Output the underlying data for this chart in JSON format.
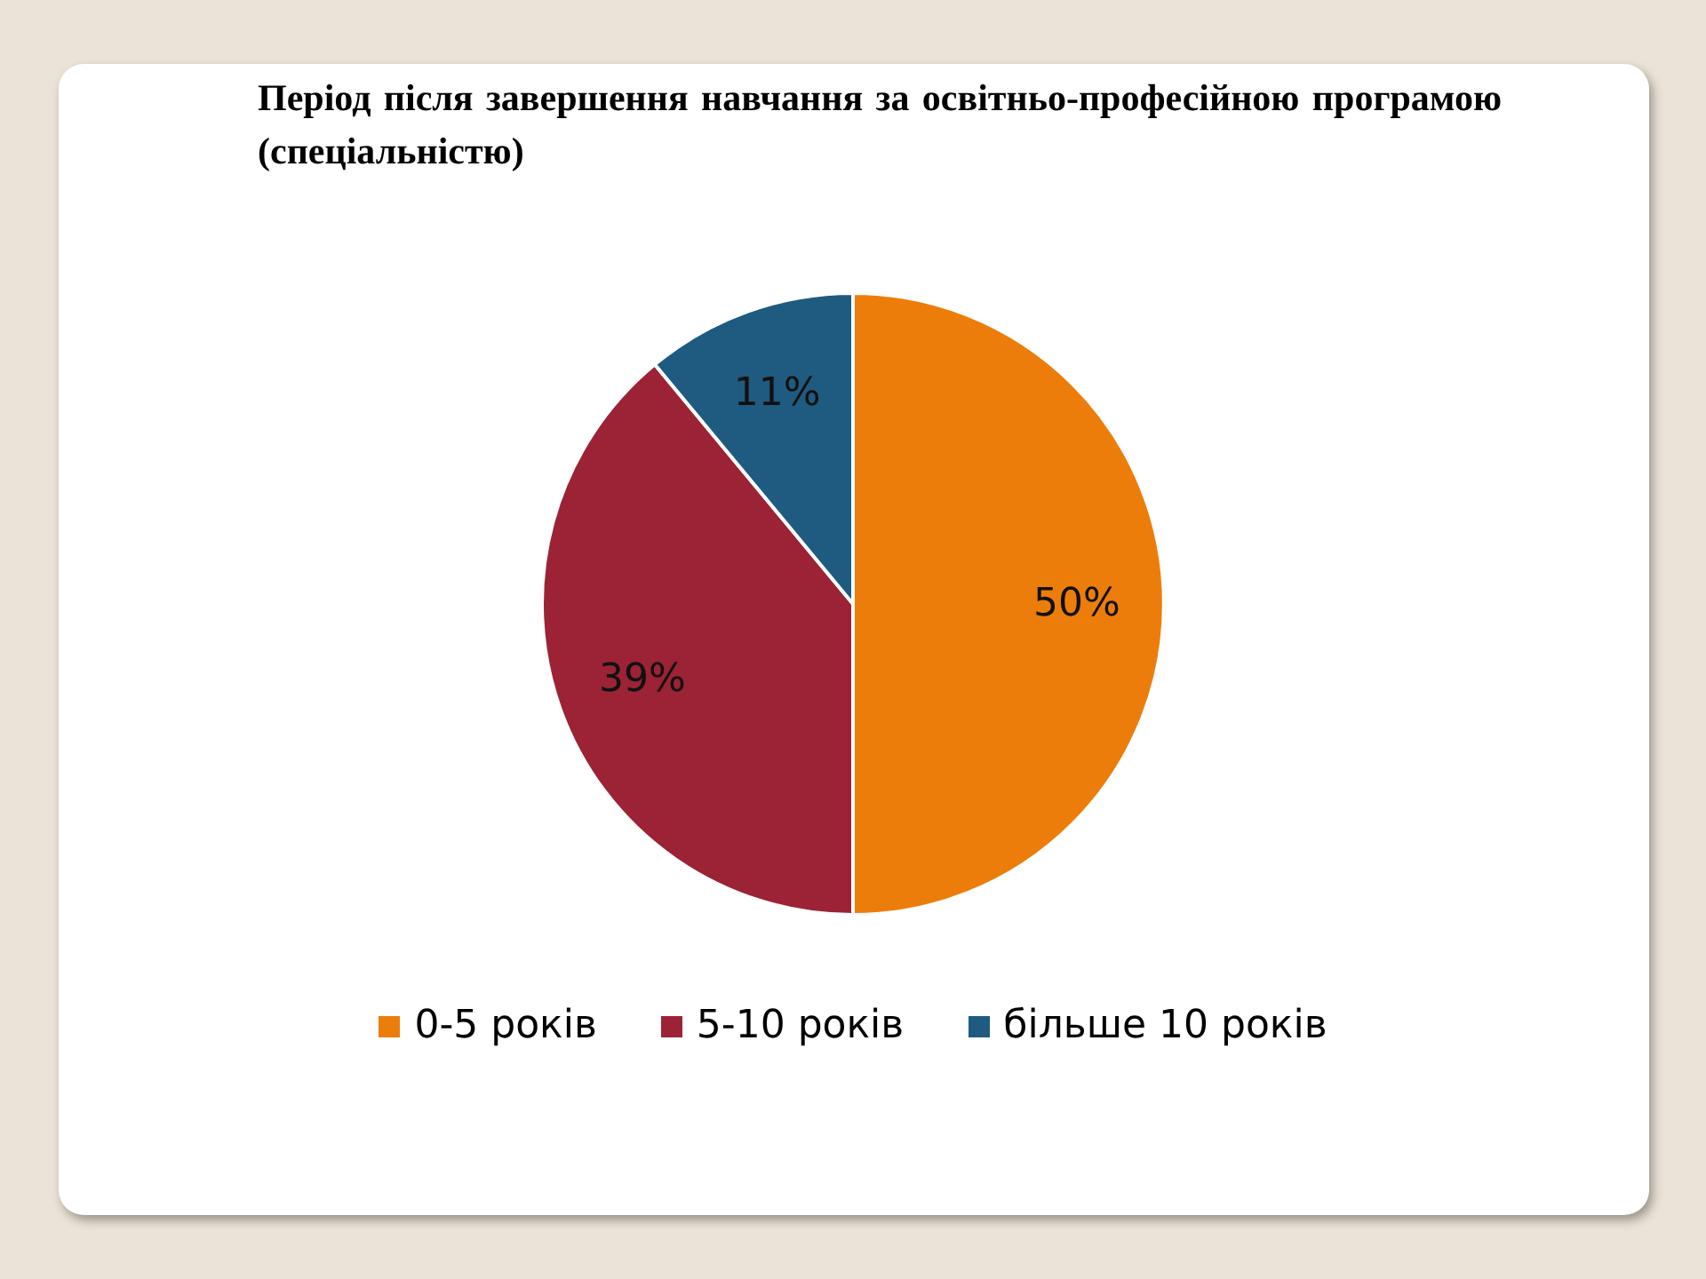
{
  "chart_data": {
    "type": "pie",
    "title": "Період після завершення навчання за освітньо-професійною програмою (спеціальністю)",
    "categories": [
      "0-5 років",
      "5-10 років",
      "більше 10 років"
    ],
    "values": [
      50,
      39,
      11
    ],
    "colors": [
      "#ed7d0b",
      "#9b2335",
      "#1f5b80"
    ],
    "value_labels": [
      "50%",
      "39%",
      "11%"
    ],
    "legend": "bottom"
  }
}
